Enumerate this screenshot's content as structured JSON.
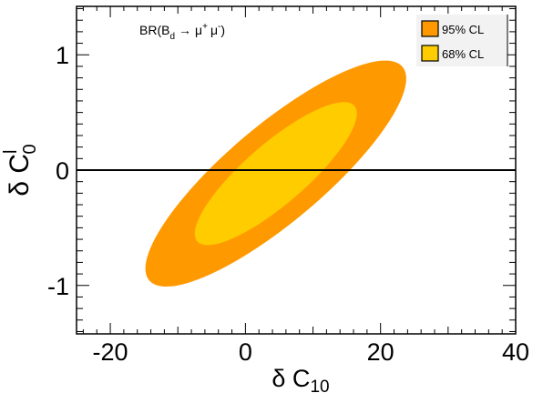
{
  "chart_data": {
    "type": "contour",
    "xlabel": {
      "prefix": "δ C",
      "sub": "10"
    },
    "ylabel": {
      "prefix": "δ C",
      "sup": "l",
      "sub": "0"
    },
    "xlim": [
      -25,
      40
    ],
    "ylim": [
      -1.42,
      1.42
    ],
    "xticks": [
      -20,
      0,
      20,
      40
    ],
    "xtick_labels": [
      "-20",
      "0",
      "20",
      "40"
    ],
    "yticks": [
      -1,
      0,
      1
    ],
    "ytick_labels": [
      "-1",
      "0",
      "1"
    ],
    "annotation": {
      "prefix": "BR(B",
      "sub": "d",
      "arrow": "→",
      "mu1": "μ",
      "sup1": "+",
      "mu2": "μ",
      "sup2": "-",
      "suffix": ")"
    },
    "reference_line_y": 0,
    "regions": [
      {
        "name": "95% CL",
        "color": "#FF9900",
        "center": [
          4.5,
          -0.03
        ],
        "x_range": [
          -14.8,
          23.8
        ],
        "y_range": [
          -0.98,
          0.98
        ]
      },
      {
        "name": "68% CL",
        "color": "#FFCC00",
        "center": [
          4.5,
          -0.03
        ],
        "x_range": [
          -7.5,
          16.5
        ],
        "y_range": [
          -0.62,
          0.62
        ]
      }
    ],
    "legend": {
      "position": "top-right",
      "entries": [
        "95% CL",
        "68% CL"
      ]
    }
  }
}
